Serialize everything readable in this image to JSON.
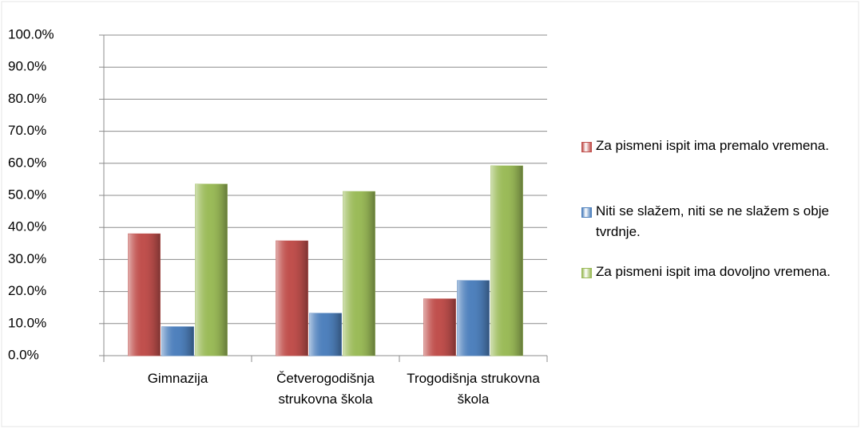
{
  "chart_data": {
    "type": "bar",
    "categories": [
      "Gimnazija",
      "Četverogodišnja strukovna škola",
      "Trogodišnja strukovna škola"
    ],
    "series": [
      {
        "name": "Za pismeni ispit ima premalo vremena.",
        "color": "#c0504d",
        "values": [
          38.0,
          35.8,
          17.7
        ]
      },
      {
        "name": "Niti se slažem, niti se ne slažem s obje tvrdnje.",
        "color": "#4f81bd",
        "values": [
          9.0,
          13.2,
          23.4
        ]
      },
      {
        "name": "Za pismeni ispit ima dovoljno vremena.",
        "color": "#9bbb59",
        "values": [
          53.5,
          51.2,
          59.2
        ]
      }
    ],
    "ylim": [
      0,
      100
    ],
    "yticks": [
      {
        "value": 0,
        "label": "0.0%"
      },
      {
        "value": 10,
        "label": "10.0%"
      },
      {
        "value": 20,
        "label": "20.0%"
      },
      {
        "value": 30,
        "label": "30.0%"
      },
      {
        "value": 40,
        "label": "40.0%"
      },
      {
        "value": 50,
        "label": "50.0%"
      },
      {
        "value": 60,
        "label": "60.0%"
      },
      {
        "value": 70,
        "label": "70.0%"
      },
      {
        "value": 80,
        "label": "80.0%"
      },
      {
        "value": 90,
        "label": "90.0%"
      },
      {
        "value": 100,
        "label": "100.0%"
      }
    ],
    "grid": true,
    "legend": "right"
  }
}
